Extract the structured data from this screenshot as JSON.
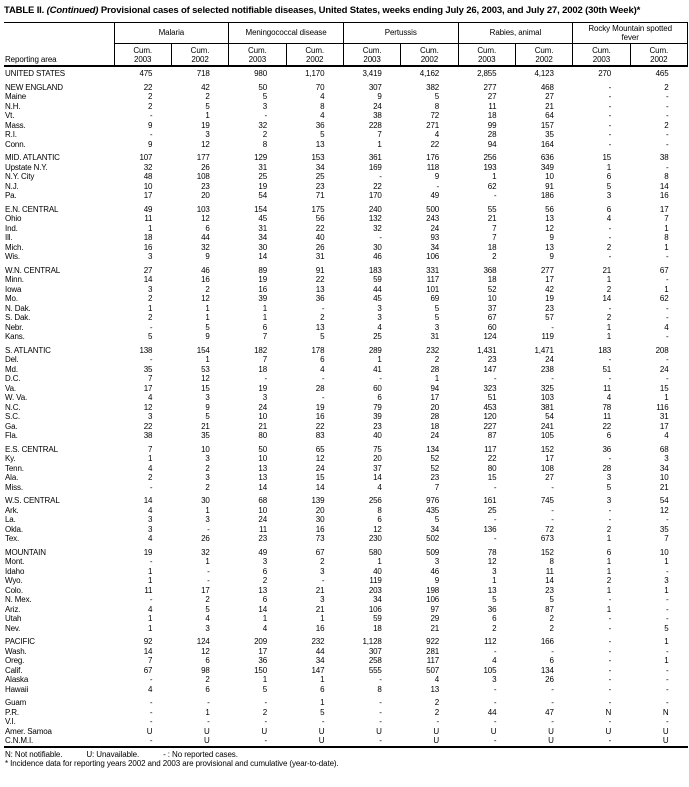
{
  "title": {
    "bold_prefix": "TABLE II.",
    "continued": "(Continued)",
    "rest": "Provisional cases of selected notifiable diseases, United States, weeks ending July 26, 2003, and July 27, 2002 (30th Week)*"
  },
  "header": {
    "reporting_area_label": "Reporting area",
    "cum_label": "Cum.",
    "years": [
      "2003",
      "2002"
    ],
    "groups": [
      {
        "label": "Malaria"
      },
      {
        "label": "Meningococcal disease"
      },
      {
        "label": "Pertussis"
      },
      {
        "label": "Rabies, animal"
      },
      {
        "label": "Rocky Mountain spotted fever"
      }
    ]
  },
  "sections": [
    {
      "rows": [
        {
          "area": "UNITED STATES",
          "values": [
            "475",
            "718",
            "980",
            "1,170",
            "3,419",
            "4,162",
            "2,855",
            "4,123",
            "270",
            "465"
          ]
        }
      ]
    },
    {
      "rows": [
        {
          "area": "NEW ENGLAND",
          "values": [
            "22",
            "42",
            "50",
            "70",
            "307",
            "382",
            "277",
            "468",
            "-",
            "2"
          ]
        },
        {
          "area": "Maine",
          "values": [
            "2",
            "2",
            "5",
            "4",
            "9",
            "5",
            "27",
            "27",
            "-",
            "-"
          ]
        },
        {
          "area": "N.H.",
          "values": [
            "2",
            "5",
            "3",
            "8",
            "24",
            "8",
            "11",
            "21",
            "-",
            "-"
          ]
        },
        {
          "area": "Vt.",
          "values": [
            "-",
            "1",
            "-",
            "4",
            "38",
            "72",
            "18",
            "64",
            "-",
            "-"
          ]
        },
        {
          "area": "Mass.",
          "values": [
            "9",
            "19",
            "32",
            "36",
            "228",
            "271",
            "99",
            "157",
            "-",
            "2"
          ]
        },
        {
          "area": "R.I.",
          "values": [
            "-",
            "3",
            "2",
            "5",
            "7",
            "4",
            "28",
            "35",
            "-",
            "-"
          ]
        },
        {
          "area": "Conn.",
          "values": [
            "9",
            "12",
            "8",
            "13",
            "1",
            "22",
            "94",
            "164",
            "-",
            "-"
          ]
        }
      ]
    },
    {
      "rows": [
        {
          "area": "MID. ATLANTIC",
          "values": [
            "107",
            "177",
            "129",
            "153",
            "361",
            "176",
            "256",
            "636",
            "15",
            "38"
          ]
        },
        {
          "area": "Upstate N.Y.",
          "values": [
            "32",
            "26",
            "31",
            "34",
            "169",
            "118",
            "193",
            "349",
            "1",
            "-"
          ]
        },
        {
          "area": "N.Y. City",
          "values": [
            "48",
            "108",
            "25",
            "25",
            "-",
            "9",
            "1",
            "10",
            "6",
            "8"
          ]
        },
        {
          "area": "N.J.",
          "values": [
            "10",
            "23",
            "19",
            "23",
            "22",
            "-",
            "62",
            "91",
            "5",
            "14"
          ]
        },
        {
          "area": "Pa.",
          "values": [
            "17",
            "20",
            "54",
            "71",
            "170",
            "49",
            "-",
            "186",
            "3",
            "16"
          ]
        }
      ]
    },
    {
      "rows": [
        {
          "area": "E.N. CENTRAL",
          "values": [
            "49",
            "103",
            "154",
            "175",
            "240",
            "500",
            "55",
            "56",
            "6",
            "17"
          ]
        },
        {
          "area": "Ohio",
          "values": [
            "11",
            "12",
            "45",
            "56",
            "132",
            "243",
            "21",
            "13",
            "4",
            "7"
          ]
        },
        {
          "area": "Ind.",
          "values": [
            "1",
            "6",
            "31",
            "22",
            "32",
            "24",
            "7",
            "12",
            "-",
            "1"
          ]
        },
        {
          "area": "Ill.",
          "values": [
            "18",
            "44",
            "34",
            "40",
            "-",
            "93",
            "7",
            "9",
            "-",
            "8"
          ]
        },
        {
          "area": "Mich.",
          "values": [
            "16",
            "32",
            "30",
            "26",
            "30",
            "34",
            "18",
            "13",
            "2",
            "1"
          ]
        },
        {
          "area": "Wis.",
          "values": [
            "3",
            "9",
            "14",
            "31",
            "46",
            "106",
            "2",
            "9",
            "-",
            "-"
          ]
        }
      ]
    },
    {
      "rows": [
        {
          "area": "W.N. CENTRAL",
          "values": [
            "27",
            "46",
            "89",
            "91",
            "183",
            "331",
            "368",
            "277",
            "21",
            "67"
          ]
        },
        {
          "area": "Minn.",
          "values": [
            "14",
            "16",
            "19",
            "22",
            "59",
            "117",
            "18",
            "17",
            "1",
            "-"
          ]
        },
        {
          "area": "Iowa",
          "values": [
            "3",
            "2",
            "16",
            "13",
            "44",
            "101",
            "52",
            "42",
            "2",
            "1"
          ]
        },
        {
          "area": "Mo.",
          "values": [
            "2",
            "12",
            "39",
            "36",
            "45",
            "69",
            "10",
            "19",
            "14",
            "62"
          ]
        },
        {
          "area": "N. Dak.",
          "values": [
            "1",
            "1",
            "1",
            "-",
            "3",
            "5",
            "37",
            "23",
            "-",
            "-"
          ]
        },
        {
          "area": "S. Dak.",
          "values": [
            "2",
            "1",
            "1",
            "2",
            "3",
            "5",
            "67",
            "57",
            "2",
            "-"
          ]
        },
        {
          "area": "Nebr.",
          "values": [
            "-",
            "5",
            "6",
            "13",
            "4",
            "3",
            "60",
            "-",
            "1",
            "4"
          ]
        },
        {
          "area": "Kans.",
          "values": [
            "5",
            "9",
            "7",
            "5",
            "25",
            "31",
            "124",
            "119",
            "1",
            "-"
          ]
        }
      ]
    },
    {
      "rows": [
        {
          "area": "S. ATLANTIC",
          "values": [
            "138",
            "154",
            "182",
            "178",
            "289",
            "232",
            "1,431",
            "1,471",
            "183",
            "208"
          ]
        },
        {
          "area": "Del.",
          "values": [
            "-",
            "1",
            "7",
            "6",
            "1",
            "2",
            "23",
            "24",
            "-",
            "-"
          ]
        },
        {
          "area": "Md.",
          "values": [
            "35",
            "53",
            "18",
            "4",
            "41",
            "28",
            "147",
            "238",
            "51",
            "24"
          ]
        },
        {
          "area": "D.C.",
          "values": [
            "7",
            "12",
            "-",
            "-",
            "-",
            "1",
            "-",
            "-",
            "-",
            "-"
          ]
        },
        {
          "area": "Va.",
          "values": [
            "17",
            "15",
            "19",
            "28",
            "60",
            "94",
            "323",
            "325",
            "11",
            "15"
          ]
        },
        {
          "area": "W. Va.",
          "values": [
            "4",
            "3",
            "3",
            "-",
            "6",
            "17",
            "51",
            "103",
            "4",
            "1"
          ]
        },
        {
          "area": "N.C.",
          "values": [
            "12",
            "9",
            "24",
            "19",
            "79",
            "20",
            "453",
            "381",
            "78",
            "116"
          ]
        },
        {
          "area": "S.C.",
          "values": [
            "3",
            "5",
            "10",
            "16",
            "39",
            "28",
            "120",
            "54",
            "11",
            "31"
          ]
        },
        {
          "area": "Ga.",
          "values": [
            "22",
            "21",
            "21",
            "22",
            "23",
            "18",
            "227",
            "241",
            "22",
            "17"
          ]
        },
        {
          "area": "Fla.",
          "values": [
            "38",
            "35",
            "80",
            "83",
            "40",
            "24",
            "87",
            "105",
            "6",
            "4"
          ]
        }
      ]
    },
    {
      "rows": [
        {
          "area": "E.S. CENTRAL",
          "values": [
            "7",
            "10",
            "50",
            "65",
            "75",
            "134",
            "117",
            "152",
            "36",
            "68"
          ]
        },
        {
          "area": "Ky.",
          "values": [
            "1",
            "3",
            "10",
            "12",
            "20",
            "52",
            "22",
            "17",
            "-",
            "3"
          ]
        },
        {
          "area": "Tenn.",
          "values": [
            "4",
            "2",
            "13",
            "24",
            "37",
            "52",
            "80",
            "108",
            "28",
            "34"
          ]
        },
        {
          "area": "Ala.",
          "values": [
            "2",
            "3",
            "13",
            "15",
            "14",
            "23",
            "15",
            "27",
            "3",
            "10"
          ]
        },
        {
          "area": "Miss.",
          "values": [
            "-",
            "2",
            "14",
            "14",
            "4",
            "7",
            "-",
            "-",
            "5",
            "21"
          ]
        }
      ]
    },
    {
      "rows": [
        {
          "area": "W.S. CENTRAL",
          "values": [
            "14",
            "30",
            "68",
            "139",
            "256",
            "976",
            "161",
            "745",
            "3",
            "54"
          ]
        },
        {
          "area": "Ark.",
          "values": [
            "4",
            "1",
            "10",
            "20",
            "8",
            "435",
            "25",
            "-",
            "-",
            "12"
          ]
        },
        {
          "area": "La.",
          "values": [
            "3",
            "3",
            "24",
            "30",
            "6",
            "5",
            "-",
            "-",
            "-",
            "-"
          ]
        },
        {
          "area": "Okla.",
          "values": [
            "3",
            "-",
            "11",
            "16",
            "12",
            "34",
            "136",
            "72",
            "2",
            "35"
          ]
        },
        {
          "area": "Tex.",
          "values": [
            "4",
            "26",
            "23",
            "73",
            "230",
            "502",
            "-",
            "673",
            "1",
            "7"
          ]
        }
      ]
    },
    {
      "rows": [
        {
          "area": "MOUNTAIN",
          "values": [
            "19",
            "32",
            "49",
            "67",
            "580",
            "509",
            "78",
            "152",
            "6",
            "10"
          ]
        },
        {
          "area": "Mont.",
          "values": [
            "-",
            "1",
            "3",
            "2",
            "1",
            "3",
            "12",
            "8",
            "1",
            "1"
          ]
        },
        {
          "area": "Idaho",
          "values": [
            "1",
            "-",
            "6",
            "3",
            "40",
            "46",
            "3",
            "11",
            "1",
            "-"
          ]
        },
        {
          "area": "Wyo.",
          "values": [
            "1",
            "-",
            "2",
            "-",
            "119",
            "9",
            "1",
            "14",
            "2",
            "3"
          ]
        },
        {
          "area": "Colo.",
          "values": [
            "11",
            "17",
            "13",
            "21",
            "203",
            "198",
            "13",
            "23",
            "1",
            "1"
          ]
        },
        {
          "area": "N. Mex.",
          "values": [
            "-",
            "2",
            "6",
            "3",
            "34",
            "106",
            "5",
            "5",
            "-",
            "-"
          ]
        },
        {
          "area": "Ariz.",
          "values": [
            "4",
            "5",
            "14",
            "21",
            "106",
            "97",
            "36",
            "87",
            "1",
            "-"
          ]
        },
        {
          "area": "Utah",
          "values": [
            "1",
            "4",
            "1",
            "1",
            "59",
            "29",
            "6",
            "2",
            "-",
            "-"
          ]
        },
        {
          "area": "Nev.",
          "values": [
            "1",
            "3",
            "4",
            "16",
            "18",
            "21",
            "2",
            "2",
            "-",
            "5"
          ]
        }
      ]
    },
    {
      "rows": [
        {
          "area": "PACIFIC",
          "values": [
            "92",
            "124",
            "209",
            "232",
            "1,128",
            "922",
            "112",
            "166",
            "-",
            "1"
          ]
        },
        {
          "area": "Wash.",
          "values": [
            "14",
            "12",
            "17",
            "44",
            "307",
            "281",
            "-",
            "-",
            "-",
            "-"
          ]
        },
        {
          "area": "Oreg.",
          "values": [
            "7",
            "6",
            "36",
            "34",
            "258",
            "117",
            "4",
            "6",
            "-",
            "1"
          ]
        },
        {
          "area": "Calif.",
          "values": [
            "67",
            "98",
            "150",
            "147",
            "555",
            "507",
            "105",
            "134",
            "-",
            "-"
          ]
        },
        {
          "area": "Alaska",
          "values": [
            "-",
            "2",
            "1",
            "1",
            "-",
            "4",
            "3",
            "26",
            "-",
            "-"
          ]
        },
        {
          "area": "Hawaii",
          "values": [
            "4",
            "6",
            "5",
            "6",
            "8",
            "13",
            "-",
            "-",
            "-",
            "-"
          ]
        }
      ]
    },
    {
      "rows": [
        {
          "area": "Guam",
          "values": [
            "-",
            "-",
            "-",
            "1",
            "-",
            "2",
            "-",
            "-",
            "-",
            "-"
          ]
        },
        {
          "area": "P.R.",
          "values": [
            "-",
            "1",
            "2",
            "5",
            "-",
            "2",
            "44",
            "47",
            "N",
            "N"
          ]
        },
        {
          "area": "V.I.",
          "values": [
            "-",
            "-",
            "-",
            "-",
            "-",
            "-",
            "-",
            "-",
            "-",
            "-"
          ]
        },
        {
          "area": "Amer. Samoa",
          "values": [
            "U",
            "U",
            "U",
            "U",
            "U",
            "U",
            "U",
            "U",
            "U",
            "U"
          ]
        },
        {
          "area": "C.N.M.I.",
          "values": [
            "-",
            "U",
            "-",
            "U",
            "-",
            "U",
            "-",
            "U",
            "-",
            "U"
          ]
        }
      ]
    }
  ],
  "footnotes": {
    "n": "N: Not notifiable.",
    "u": "U: Unavailable.",
    "dash": "- : No reported cases.",
    "note": "* Incidence data for reporting years 2002 and 2003 are provisional and cumulative (year-to-date)."
  }
}
